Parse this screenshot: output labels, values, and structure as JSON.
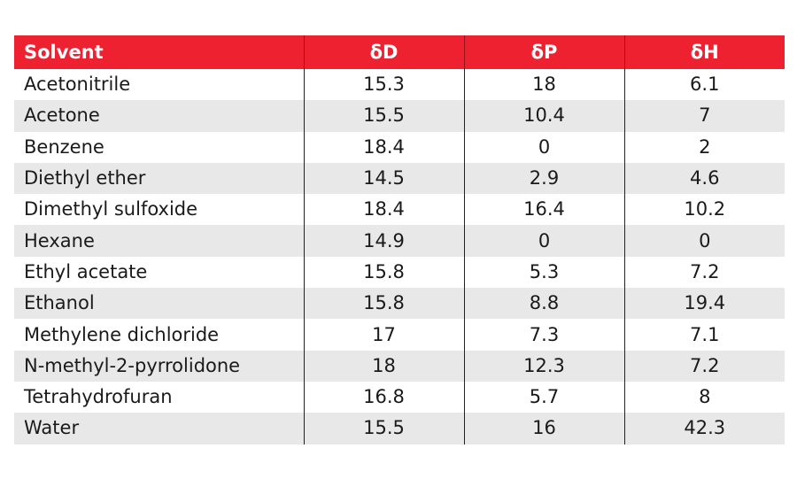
{
  "table": {
    "header": {
      "solvent": "Solvent",
      "dD": "δD",
      "dP": "δP",
      "dH": "δH"
    },
    "rows": [
      {
        "solvent": "Acetonitrile",
        "dD": "15.3",
        "dP": "18",
        "dH": "6.1"
      },
      {
        "solvent": "Acetone",
        "dD": "15.5",
        "dP": "10.4",
        "dH": "7"
      },
      {
        "solvent": "Benzene",
        "dD": "18.4",
        "dP": "0",
        "dH": "2"
      },
      {
        "solvent": "Diethyl ether",
        "dD": "14.5",
        "dP": "2.9",
        "dH": "4.6"
      },
      {
        "solvent": "Dimethyl sulfoxide",
        "dD": "18.4",
        "dP": "16.4",
        "dH": "10.2"
      },
      {
        "solvent": "Hexane",
        "dD": "14.9",
        "dP": "0",
        "dH": "0"
      },
      {
        "solvent": "Ethyl acetate",
        "dD": "15.8",
        "dP": "5.3",
        "dH": "7.2"
      },
      {
        "solvent": "Ethanol",
        "dD": "15.8",
        "dP": "8.8",
        "dH": "19.4"
      },
      {
        "solvent": "Methylene dichloride",
        "dD": "17",
        "dP": "7.3",
        "dH": "7.1"
      },
      {
        "solvent": "N-methyl-2-pyrrolidone",
        "dD": "18",
        "dP": "12.3",
        "dH": "7.2"
      },
      {
        "solvent": "Tetrahydrofuran",
        "dD": "16.8",
        "dP": "5.7",
        "dH": "8"
      },
      {
        "solvent": "Water",
        "dD": "15.5",
        "dP": "16",
        "dH": "42.3"
      }
    ],
    "colors": {
      "header_bg": "#ee2131",
      "header_text": "#ffffff",
      "stripe": "#e8e8e9"
    }
  }
}
